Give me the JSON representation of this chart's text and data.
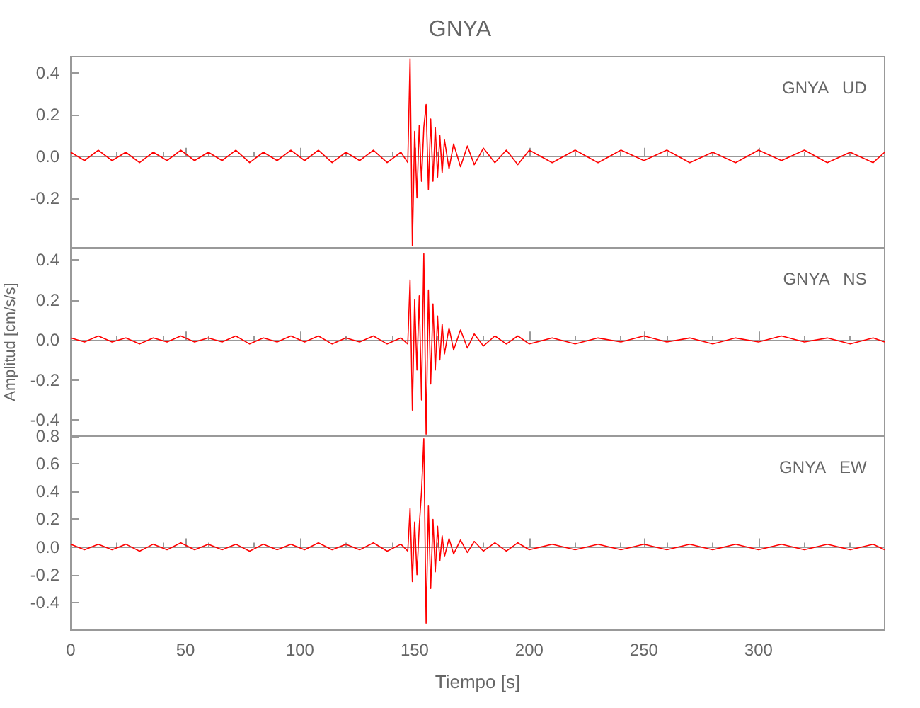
{
  "chart_data": [
    {
      "type": "line",
      "title": "GNYA",
      "annotations": [
        "GNYA   UD"
      ],
      "tick_labels": "y",
      "xlim": [
        0,
        355
      ],
      "xticks": [
        0,
        50,
        100,
        150,
        200,
        250,
        300
      ],
      "ylim": [
        -0.44,
        0.48
      ],
      "yticks": [
        {
          "value": 0.4,
          "label": "0.4"
        },
        {
          "value": 0.2,
          "label": "0.2"
        },
        {
          "value": 0,
          "label": "0.0"
        },
        {
          "value": -0.2,
          "label": "-0.2"
        }
      ],
      "series": [
        {
          "color": "#ff0000",
          "x": [
            0,
            6,
            12,
            18,
            24,
            30,
            36,
            42,
            48,
            54,
            60,
            66,
            72,
            78,
            84,
            90,
            96,
            102,
            108,
            114,
            120,
            126,
            132,
            138,
            144,
            147,
            148,
            149,
            150,
            151,
            152,
            153,
            154,
            155,
            156,
            157,
            158,
            159,
            160,
            161,
            162,
            163,
            165,
            167,
            170,
            173,
            176,
            180,
            185,
            190,
            195,
            200,
            210,
            220,
            230,
            240,
            250,
            260,
            270,
            280,
            290,
            300,
            310,
            320,
            330,
            340,
            350,
            355
          ],
          "values": [
            0.02,
            -0.02,
            0.03,
            -0.02,
            0.02,
            -0.03,
            0.02,
            -0.02,
            0.03,
            -0.02,
            0.02,
            -0.02,
            0.03,
            -0.03,
            0.02,
            -0.02,
            0.03,
            -0.02,
            0.03,
            -0.03,
            0.02,
            -0.02,
            0.03,
            -0.03,
            0.02,
            -0.03,
            0.47,
            -0.43,
            0.12,
            -0.2,
            0.15,
            -0.12,
            0.14,
            0.25,
            -0.16,
            0.18,
            -0.12,
            0.14,
            -0.1,
            0.1,
            -0.08,
            0.08,
            -0.06,
            0.06,
            -0.05,
            0.05,
            -0.04,
            0.04,
            -0.03,
            0.03,
            -0.04,
            0.03,
            -0.03,
            0.03,
            -0.03,
            0.03,
            -0.02,
            0.03,
            -0.03,
            0.02,
            -0.03,
            0.03,
            -0.02,
            0.03,
            -0.03,
            0.02,
            -0.03,
            0.02
          ]
        }
      ]
    },
    {
      "type": "line",
      "ylabel": "Amplitud [cm/s/s]",
      "annotations": [
        "GNYA   NS"
      ],
      "tick_labels": "y",
      "xlim": [
        0,
        355
      ],
      "xticks": [
        0,
        50,
        100,
        150,
        200,
        250,
        300
      ],
      "ylim": [
        -0.48,
        0.46
      ],
      "yticks": [
        {
          "value": 0.4,
          "label": "0.4"
        },
        {
          "value": 0.2,
          "label": "0.2"
        },
        {
          "value": 0,
          "label": "0.0"
        },
        {
          "value": -0.2,
          "label": "-0.2"
        },
        {
          "value": -0.4,
          "label": "-0.4"
        }
      ],
      "series": [
        {
          "color": "#ff0000",
          "x": [
            0,
            6,
            12,
            18,
            24,
            30,
            36,
            42,
            48,
            54,
            60,
            66,
            72,
            78,
            84,
            90,
            96,
            102,
            108,
            114,
            120,
            126,
            132,
            138,
            144,
            147,
            148,
            149,
            150,
            151,
            152,
            153,
            154,
            155,
            156,
            157,
            158,
            159,
            160,
            161,
            162,
            163,
            165,
            167,
            170,
            173,
            176,
            180,
            185,
            190,
            195,
            200,
            210,
            220,
            230,
            240,
            250,
            260,
            270,
            280,
            290,
            300,
            310,
            320,
            330,
            340,
            350,
            355
          ],
          "values": [
            0.01,
            -0.01,
            0.02,
            -0.01,
            0.01,
            -0.02,
            0.01,
            -0.01,
            0.02,
            -0.01,
            0.01,
            -0.01,
            0.02,
            -0.02,
            0.01,
            -0.01,
            0.02,
            -0.01,
            0.02,
            -0.02,
            0.01,
            -0.01,
            0.02,
            -0.02,
            0.01,
            -0.02,
            0.3,
            -0.35,
            0.2,
            -0.15,
            0.22,
            -0.3,
            0.43,
            -0.47,
            0.25,
            -0.22,
            0.18,
            -0.15,
            0.12,
            -0.1,
            0.08,
            -0.07,
            0.06,
            -0.05,
            0.05,
            -0.04,
            0.03,
            -0.03,
            0.02,
            -0.02,
            0.02,
            -0.02,
            0.01,
            -0.02,
            0.01,
            -0.01,
            0.02,
            -0.01,
            0.01,
            -0.02,
            0.01,
            -0.01,
            0.02,
            -0.01,
            0.01,
            -0.02,
            0.01,
            -0.01
          ]
        }
      ]
    },
    {
      "type": "line",
      "xlabel": "Tiempo [s]",
      "annotations": [
        "GNYA   EW"
      ],
      "xlim": [
        0,
        355
      ],
      "xticks": [
        0,
        50,
        100,
        150,
        200,
        250,
        300
      ],
      "ylim": [
        -0.6,
        0.8
      ],
      "yticks": [
        {
          "value": 0.8,
          "label": "0.8"
        },
        {
          "value": 0.6,
          "label": "0.6"
        },
        {
          "value": 0.4,
          "label": "0.4"
        },
        {
          "value": 0.2,
          "label": "0.2"
        },
        {
          "value": 0,
          "label": "0.0"
        },
        {
          "value": -0.2,
          "label": "-0.2"
        },
        {
          "value": -0.4,
          "label": "-0.4"
        }
      ],
      "series": [
        {
          "color": "#ff0000",
          "x": [
            0,
            6,
            12,
            18,
            24,
            30,
            36,
            42,
            48,
            54,
            60,
            66,
            72,
            78,
            84,
            90,
            96,
            102,
            108,
            114,
            120,
            126,
            132,
            138,
            144,
            147,
            148,
            149,
            150,
            151,
            152,
            153,
            154,
            155,
            156,
            157,
            158,
            159,
            160,
            161,
            162,
            163,
            165,
            167,
            170,
            173,
            176,
            180,
            185,
            190,
            195,
            200,
            210,
            220,
            230,
            240,
            250,
            260,
            270,
            280,
            290,
            300,
            310,
            320,
            330,
            340,
            350,
            355
          ],
          "values": [
            0.02,
            -0.02,
            0.02,
            -0.02,
            0.02,
            -0.03,
            0.02,
            -0.02,
            0.03,
            -0.02,
            0.02,
            -0.02,
            0.02,
            -0.03,
            0.02,
            -0.02,
            0.02,
            -0.02,
            0.03,
            -0.02,
            0.02,
            -0.02,
            0.03,
            -0.03,
            0.02,
            -0.03,
            0.28,
            -0.25,
            0.18,
            -0.2,
            0.15,
            0.4,
            0.78,
            -0.55,
            0.3,
            -0.3,
            0.2,
            -0.18,
            0.15,
            -0.1,
            0.08,
            -0.07,
            0.06,
            -0.05,
            0.05,
            -0.04,
            0.04,
            -0.03,
            0.03,
            -0.03,
            0.03,
            -0.02,
            0.02,
            -0.02,
            0.02,
            -0.02,
            0.02,
            -0.02,
            0.02,
            -0.02,
            0.02,
            -0.02,
            0.02,
            -0.02,
            0.02,
            -0.02,
            0.02,
            -0.02
          ]
        }
      ]
    }
  ]
}
